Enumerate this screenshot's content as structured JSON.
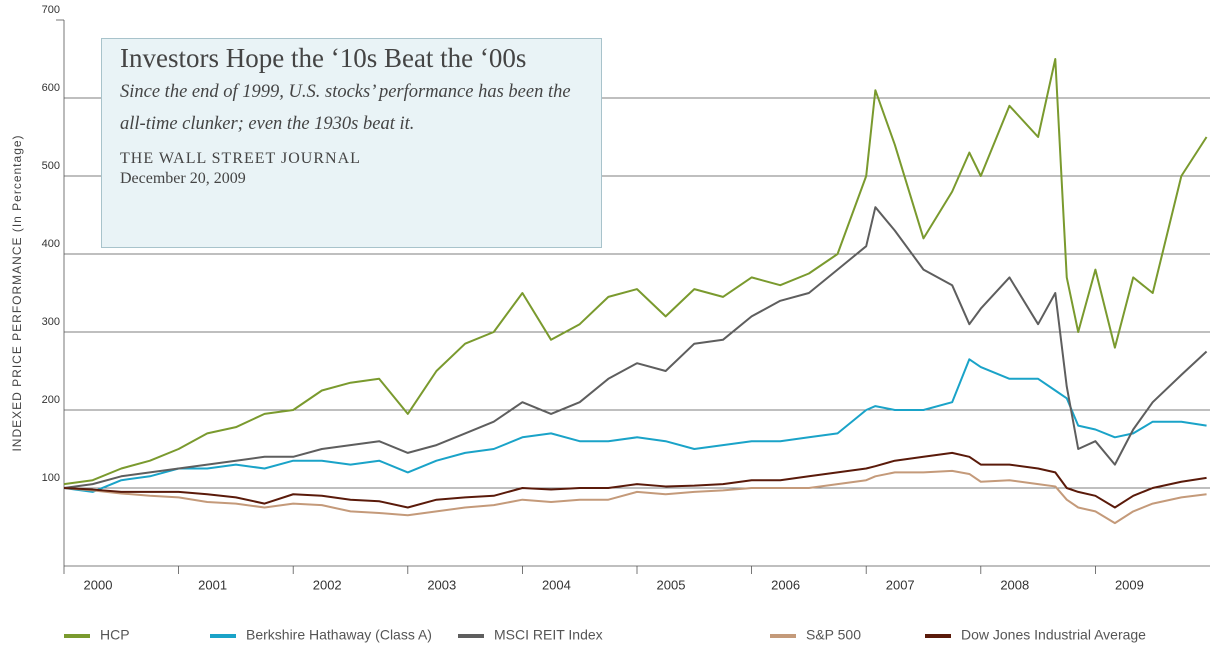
{
  "chart_data": {
    "type": "line",
    "annotation": {
      "title": "Investors Hope the ‘10s Beat the ‘00s",
      "subtitle": "Since the end of 1999, U.S. stocks’ performance has been the all-time clunker; even the 1930s beat it.",
      "source": "THE WALL STREET JOURNAL",
      "date": "December 20, 2009"
    },
    "y_label": "INDEXED PRICE PERFORMANCE (In Percentage)",
    "x": [
      2000,
      2000.25,
      2000.5,
      2000.75,
      2001,
      2001.25,
      2001.5,
      2001.75,
      2002,
      2002.25,
      2002.5,
      2002.75,
      2003,
      2003.25,
      2003.5,
      2003.75,
      2004,
      2004.25,
      2004.5,
      2004.75,
      2005,
      2005.25,
      2005.5,
      2005.75,
      2006,
      2006.25,
      2006.5,
      2006.75,
      2007,
      2007.08,
      2007.25,
      2007.5,
      2007.75,
      2007.9,
      2008,
      2008.25,
      2008.5,
      2008.65,
      2008.75,
      2008.85,
      2009,
      2009.17,
      2009.33,
      2009.5,
      2009.75,
      2009.97
    ],
    "series": [
      {
        "name": "HCP",
        "color": "#7a9a2e",
        "values": [
          105,
          110,
          125,
          135,
          150,
          170,
          178,
          195,
          200,
          225,
          235,
          240,
          195,
          250,
          285,
          300,
          350,
          290,
          310,
          345,
          355,
          320,
          355,
          345,
          370,
          360,
          375,
          400,
          500,
          610,
          540,
          420,
          480,
          530,
          500,
          590,
          550,
          650,
          370,
          300,
          380,
          280,
          370,
          350,
          500,
          550
        ]
      },
      {
        "name": "Berkshire Hathaway (Class A)",
        "color": "#1aa3c8",
        "values": [
          100,
          95,
          110,
          115,
          125,
          125,
          130,
          125,
          135,
          135,
          130,
          135,
          120,
          135,
          145,
          150,
          165,
          170,
          160,
          160,
          165,
          160,
          150,
          155,
          160,
          160,
          165,
          170,
          200,
          205,
          200,
          200,
          210,
          265,
          255,
          240,
          240,
          225,
          215,
          180,
          175,
          165,
          170,
          185,
          185,
          180
        ]
      },
      {
        "name": "MSCI REIT Index",
        "color": "#5e5e5e",
        "values": [
          100,
          105,
          115,
          120,
          125,
          130,
          135,
          140,
          140,
          150,
          155,
          160,
          145,
          155,
          170,
          185,
          210,
          195,
          210,
          240,
          260,
          250,
          285,
          290,
          320,
          340,
          350,
          380,
          410,
          460,
          430,
          380,
          360,
          310,
          330,
          370,
          310,
          350,
          230,
          150,
          160,
          130,
          175,
          210,
          245,
          275
        ]
      },
      {
        "name": "S&P 500",
        "color": "#c49a7a",
        "values": [
          100,
          97,
          93,
          90,
          88,
          82,
          80,
          75,
          80,
          78,
          70,
          68,
          65,
          70,
          75,
          78,
          85,
          82,
          85,
          85,
          95,
          92,
          95,
          97,
          100,
          100,
          100,
          105,
          110,
          115,
          120,
          120,
          122,
          118,
          108,
          110,
          105,
          102,
          85,
          75,
          70,
          55,
          70,
          80,
          88,
          92
        ]
      },
      {
        "name": "Dow Jones Industrial Average",
        "color": "#5a1a0a",
        "values": [
          100,
          98,
          95,
          95,
          95,
          92,
          88,
          80,
          92,
          90,
          85,
          83,
          75,
          85,
          88,
          90,
          100,
          98,
          100,
          100,
          105,
          102,
          103,
          105,
          110,
          110,
          115,
          120,
          125,
          128,
          135,
          140,
          145,
          140,
          130,
          130,
          125,
          120,
          100,
          95,
          90,
          75,
          90,
          100,
          108,
          113
        ]
      }
    ],
    "xlim": [
      2000,
      2010
    ],
    "xticks": [
      2000,
      2001,
      2002,
      2003,
      2004,
      2005,
      2006,
      2007,
      2008,
      2009
    ],
    "ylim": [
      0,
      700
    ],
    "yticks": [
      100,
      200,
      300,
      400,
      500,
      600,
      700
    ],
    "grid": true
  }
}
